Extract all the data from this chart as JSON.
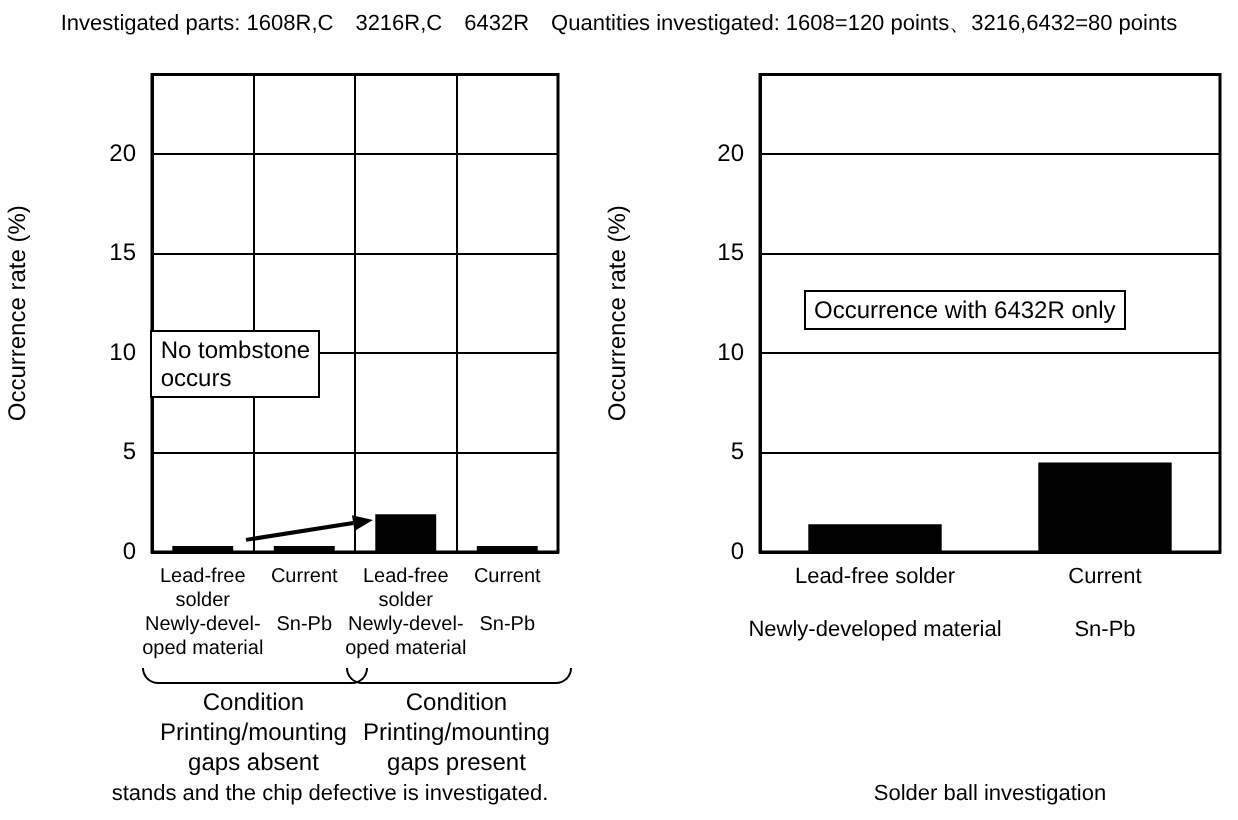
{
  "chart_data": [
    {
      "type": "bar",
      "title": "Investigated parts: 1608R,C　3216R,C　6432R　Quantities investigated: 1608=120 points、3216,6432=80 points",
      "ylabel": "Occurrence rate (%)",
      "categories": [
        "Lead-free\nsolder\nNewly-devel-\noped material",
        "Current\n\nSn-Pb",
        "Lead-free\nsolder\nNewly-devel-\noped material",
        "Current\n\nSn-Pb"
      ],
      "values": [
        0.3,
        0.3,
        1.9,
        0.3
      ],
      "color": "#000000",
      "ylim": [
        0,
        24
      ],
      "yticks": [
        0,
        5,
        10,
        15,
        20
      ],
      "grid": true,
      "annotations": [
        "No tombstone\noccurs",
        "Condition\nPrinting/mounting\ngaps absent",
        "Condition\nPrinting/mounting\ngaps present",
        "stands and the chip defective is investigated."
      ]
    },
    {
      "type": "bar",
      "ylabel": "Occurrence rate (%)",
      "categories": [
        "Lead-free solder\n\nNewly-developed material",
        "Current\n\nSn-Pb"
      ],
      "values": [
        1.4,
        4.5
      ],
      "color": "#000000",
      "ylim": [
        0,
        24
      ],
      "yticks": [
        0,
        5,
        10,
        15,
        20
      ],
      "grid": "y",
      "annotations": [
        "Occurrence with 6432R only",
        "Solder ball investigation"
      ]
    }
  ]
}
